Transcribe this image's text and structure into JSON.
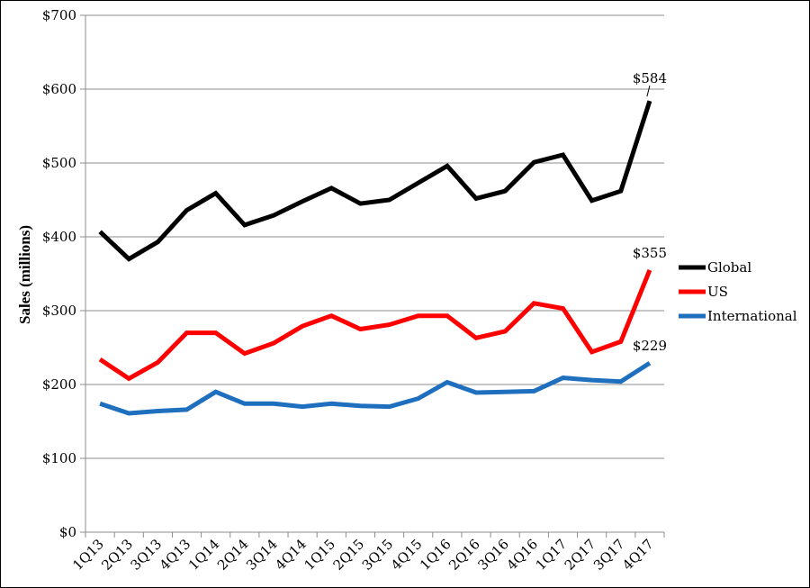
{
  "chart_data": {
    "type": "line",
    "title": "",
    "xlabel": "",
    "ylabel": "Sales (millions)",
    "ylim": [
      0,
      700
    ],
    "y_ticks": [
      0,
      100,
      200,
      300,
      400,
      500,
      600,
      700
    ],
    "y_tick_labels": [
      "$0",
      "$100",
      "$200",
      "$300",
      "$400",
      "$500",
      "$600",
      "$700"
    ],
    "grid": "horizontal",
    "legend_position": "right",
    "categories": [
      "1Q13",
      "2Q13",
      "3Q13",
      "4Q13",
      "1Q14",
      "2Q14",
      "3Q14",
      "4Q14",
      "1Q15",
      "2Q15",
      "3Q15",
      "4Q15",
      "1Q16",
      "2Q16",
      "3Q16",
      "4Q16",
      "1Q17",
      "2Q17",
      "3Q17",
      "4Q17"
    ],
    "series": [
      {
        "name": "Global",
        "color": "#000000",
        "values": [
          407,
          370,
          393,
          436,
          459,
          416,
          429,
          448,
          466,
          445,
          450,
          473,
          496,
          452,
          462,
          501,
          511,
          449,
          462,
          584
        ],
        "end_label": "$584"
      },
      {
        "name": "US",
        "color": "#ff0000",
        "values": [
          234,
          208,
          230,
          270,
          270,
          242,
          256,
          279,
          293,
          275,
          281,
          293,
          293,
          263,
          272,
          310,
          303,
          244,
          258,
          355
        ],
        "end_label": "$355"
      },
      {
        "name": "International",
        "color": "#1f6fbf",
        "values": [
          174,
          161,
          164,
          166,
          190,
          174,
          174,
          170,
          174,
          171,
          170,
          181,
          203,
          189,
          190,
          191,
          209,
          206,
          204,
          229
        ],
        "end_label": "$229"
      }
    ]
  }
}
